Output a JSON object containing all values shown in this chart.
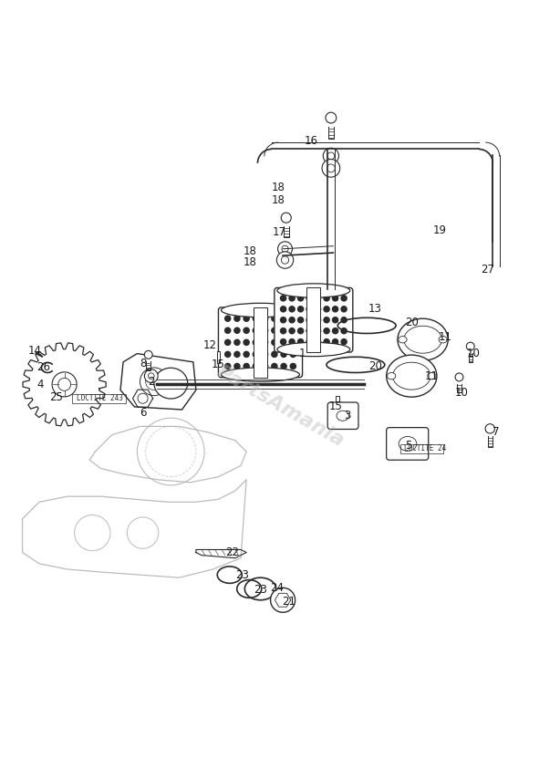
{
  "bg_color": "#ffffff",
  "line_color": "#2a2a2a",
  "text_color": "#1a1a1a",
  "watermark": "PartsAmania",
  "loctite_label_1": "LOCTITE 243",
  "loctite_label_2": "LOCTITE 24"
}
